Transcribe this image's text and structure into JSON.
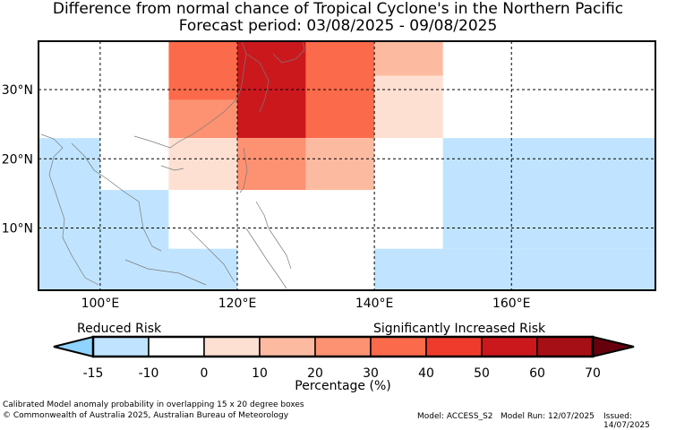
{
  "title": {
    "line1": "Difference from normal chance of Tropical Cyclone's in the Northern Pacific",
    "line2": "Forecast period: 03/08/2025 - 09/08/2025"
  },
  "map": {
    "lat_labels": [
      "30°N",
      "20°N",
      "10°N"
    ],
    "lon_labels": [
      "100°E",
      "120°E",
      "140°E",
      "160°E"
    ],
    "extent": {
      "lon": [
        91,
        181
      ],
      "lat": [
        1,
        37
      ]
    },
    "cells": [
      {
        "lon": [
          91,
          110
        ],
        "lat": [
          23,
          37
        ],
        "pct": -10
      },
      {
        "lon": [
          110,
          120
        ],
        "lat": [
          28.5,
          37
        ],
        "pct": 35
      },
      {
        "lon": [
          110,
          120
        ],
        "lat": [
          23,
          28.5
        ],
        "pct": 25
      },
      {
        "lon": [
          120,
          130
        ],
        "lat": [
          23,
          37
        ],
        "pct": 55
      },
      {
        "lon": [
          130,
          140
        ],
        "lat": [
          23,
          37
        ],
        "pct": 35
      },
      {
        "lon": [
          140,
          150
        ],
        "lat": [
          32,
          37
        ],
        "pct": 15
      },
      {
        "lon": [
          140,
          150
        ],
        "lat": [
          23,
          32
        ],
        "pct": 5
      },
      {
        "lon": [
          91,
          110
        ],
        "lat": [
          1,
          23
        ],
        "pct": -15
      },
      {
        "lon": [
          100,
          110
        ],
        "lat": [
          15.5,
          23
        ],
        "pct": -10
      },
      {
        "lon": [
          110,
          120
        ],
        "lat": [
          15.5,
          23
        ],
        "pct": 5
      },
      {
        "lon": [
          120,
          130
        ],
        "lat": [
          15.5,
          23
        ],
        "pct": 25
      },
      {
        "lon": [
          130,
          140
        ],
        "lat": [
          15.5,
          23
        ],
        "pct": 15
      },
      {
        "lon": [
          110,
          120
        ],
        "lat": [
          7,
          15.5
        ],
        "pct": -10
      },
      {
        "lon": [
          110,
          120
        ],
        "lat": [
          1,
          7
        ],
        "pct": -15
      },
      {
        "lon": [
          120,
          130
        ],
        "lat": [
          1,
          7
        ],
        "pct": -10
      },
      {
        "lon": [
          140,
          150
        ],
        "lat": [
          7,
          15.5
        ],
        "pct": -10
      },
      {
        "lon": [
          140,
          181
        ],
        "lat": [
          1,
          7
        ],
        "pct": -15
      },
      {
        "lon": [
          150,
          181
        ],
        "lat": [
          7,
          23
        ],
        "pct": -15
      }
    ]
  },
  "legend": {
    "reduced_label": "Reduced Risk",
    "increased_label": "Significantly Increased Risk",
    "axis_label": "Percentage (%)",
    "ticks": [
      "-15",
      "-10",
      "0",
      "10",
      "20",
      "30",
      "40",
      "50",
      "60",
      "70"
    ],
    "under_color": "#8fd3ff",
    "over_color": "#67000d",
    "colors": [
      "#c0e4ff",
      "#ffffff",
      "#fee0d2",
      "#fcbba1",
      "#fc9272",
      "#fb6a4a",
      "#ef3b2c",
      "#cb181d",
      "#a50f15"
    ]
  },
  "footer": {
    "line1": "Calibrated Model anomaly probability in overlapping 15 x 20 degree boxes",
    "line2": "© Commonwealth of Australia 2025, Australian Bureau of Meteorology",
    "model": "Model: ACCESS_S2",
    "run": "Model Run: 12/07/2025",
    "issued": "Issued: 14/07/2025"
  }
}
